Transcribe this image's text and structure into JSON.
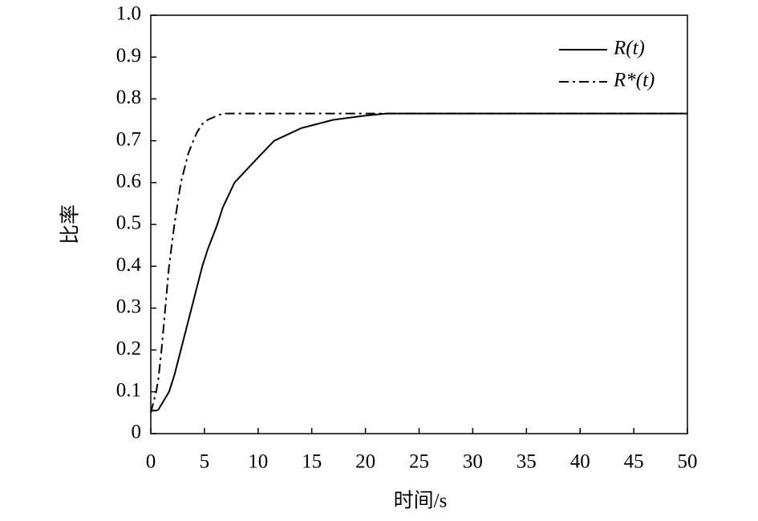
{
  "chart_data": {
    "type": "line",
    "xlabel": "时间/s",
    "ylabel": "比率",
    "x": [
      0,
      0.5,
      0.7,
      1,
      1.7,
      2.2,
      2.8,
      3.5,
      3.8,
      4.3,
      4.8,
      5.3,
      6.2,
      6.7,
      7.8,
      10,
      11.5,
      14,
      17,
      20,
      22,
      30,
      40,
      50
    ],
    "series": [
      {
        "name": "R(t)",
        "color": "#000000",
        "dash": "solid",
        "values": [
          0.055,
          0.055,
          0.057,
          0.07,
          0.1,
          0.14,
          0.2,
          0.27,
          0.3,
          0.35,
          0.4,
          0.44,
          0.5,
          0.54,
          0.6,
          0.66,
          0.7,
          0.73,
          0.75,
          0.76,
          0.765,
          0.765,
          0.765,
          0.765
        ]
      },
      {
        "name": "R*(t)",
        "color": "#000000",
        "dash": "dashdot",
        "values": [
          0.05,
          0.1,
          0.13,
          0.2,
          0.4,
          0.5,
          0.6,
          0.67,
          0.69,
          0.72,
          0.74,
          0.75,
          0.76,
          0.765,
          0.765,
          0.765,
          0.765,
          0.765,
          0.765,
          0.765,
          0.765,
          0.765,
          0.765,
          0.765
        ]
      }
    ],
    "xlim": [
      0,
      50
    ],
    "xticks": [
      0,
      5,
      10,
      15,
      20,
      25,
      30,
      35,
      40,
      45,
      50
    ],
    "ylim": [
      0,
      1
    ],
    "yticks": [
      0,
      0.1,
      0.2,
      0.3,
      0.4,
      0.5,
      0.6,
      0.7,
      0.8,
      0.9,
      {
        "value": 1,
        "label": "1.0"
      }
    ],
    "legend": "upper-right"
  }
}
